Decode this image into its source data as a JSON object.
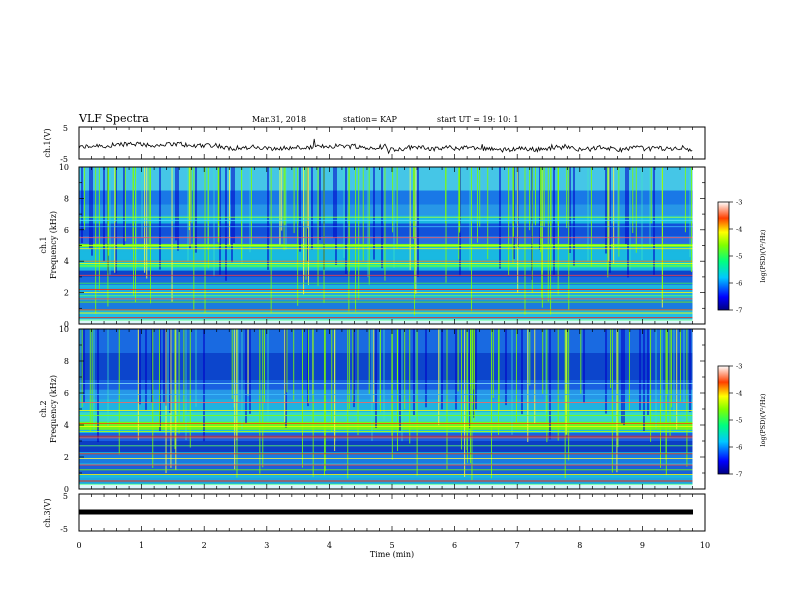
{
  "header": {
    "title": "VLF Spectra",
    "date": "Mar.31, 2018",
    "station": "station= KAP",
    "start": "start  UT =   19: 10: 1"
  },
  "chart_data": [
    {
      "type": "line",
      "name": "ch1-waveform",
      "ylabel": "ch.1(V)",
      "ylim": [
        -5,
        5
      ],
      "y_ticks": [
        "5",
        "-5"
      ],
      "xlim": [
        0,
        10
      ],
      "pattern": "noisy waveform, mean about -1.5 V, amplitude about 1 V, spans 0 to 9.8 min"
    },
    {
      "type": "heatmap",
      "name": "ch1-spectrogram",
      "ylabel": "ch.1\nFrequency (kHz)",
      "ylim": [
        0,
        10
      ],
      "y_ticks": [
        "0",
        "2",
        "4",
        "6",
        "8",
        "10"
      ],
      "xlim": [
        0,
        9.8
      ],
      "colorbar": {
        "label": "log(PSD)(V²/Hz)",
        "range": [
          -7,
          -3
        ],
        "ticks": [
          "-3",
          "-4",
          "-5",
          "-6",
          "-7"
        ]
      }
    },
    {
      "type": "heatmap",
      "name": "ch2-spectrogram",
      "ylabel": "ch.2\nFrequency (kHz)",
      "ylim": [
        0,
        10
      ],
      "y_ticks": [
        "0",
        "2",
        "4",
        "6",
        "8",
        "10"
      ],
      "xlim": [
        0,
        9.8
      ],
      "colorbar": {
        "label": "log(PSD)(V²/Hz)",
        "range": [
          -7,
          -3
        ],
        "ticks": [
          "-3",
          "-4",
          "-5",
          "-6",
          "-7"
        ]
      }
    },
    {
      "type": "line",
      "name": "ch3-waveform",
      "ylabel": "ch.3(V)",
      "ylim": [
        -5,
        5
      ],
      "y_ticks": [
        "5",
        "-5"
      ],
      "xlim": [
        0,
        10
      ],
      "pattern": "flat thick line at about -1.5 V from 0 to 9.8 min"
    }
  ],
  "x_axis": {
    "label": "Time  (min)",
    "ticks": [
      "0",
      "1",
      "2",
      "3",
      "4",
      "5",
      "6",
      "7",
      "8",
      "9",
      "10"
    ]
  },
  "colors": {
    "spec_low": "#0000c8",
    "spec_mid": "#1ab8e0",
    "spec_high": "#7fff00",
    "spec_peak": "#ff2000"
  }
}
